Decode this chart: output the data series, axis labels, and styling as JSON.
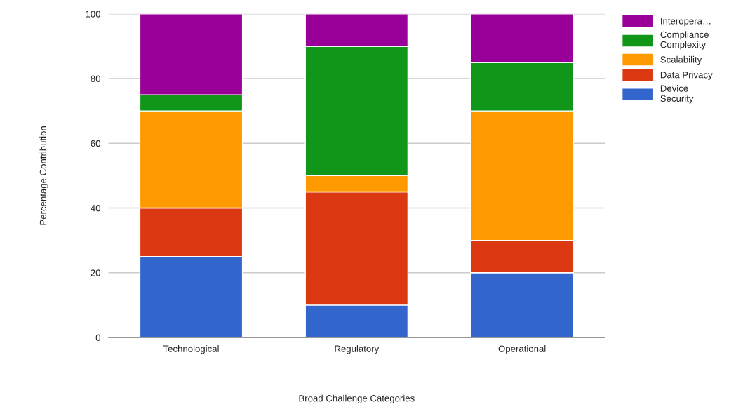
{
  "chart_data": {
    "type": "bar",
    "stacked": true,
    "xlabel": "Broad Challenge Categories",
    "ylabel": "Percentage Contribution",
    "categories": [
      "Technological",
      "Regulatory",
      "Operational"
    ],
    "series": [
      {
        "name": "Device Security",
        "color": "#3366cc",
        "values": [
          25,
          10,
          20
        ]
      },
      {
        "name": "Data Privacy",
        "color": "#dc3912",
        "values": [
          15,
          35,
          10
        ]
      },
      {
        "name": "Scalability",
        "color": "#ff9900",
        "values": [
          30,
          5,
          40
        ]
      },
      {
        "name": "Compliance Complexity",
        "color": "#109618",
        "values": [
          5,
          40,
          15
        ]
      },
      {
        "name": "Interopera…",
        "color": "#990099",
        "values": [
          25,
          10,
          15
        ]
      }
    ],
    "ylim": [
      0,
      100
    ],
    "yticks": [
      0,
      20,
      40,
      60,
      80,
      100
    ],
    "grid": "y",
    "legend": "right"
  }
}
